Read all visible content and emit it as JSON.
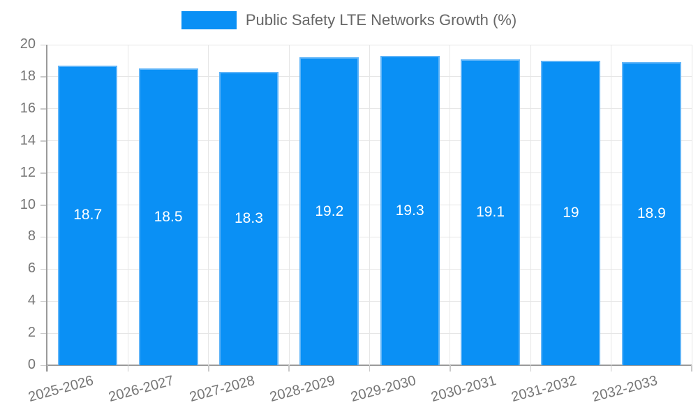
{
  "chart_data": {
    "type": "bar",
    "title": "Public Safety LTE Networks Growth (%)",
    "categories": [
      "2025-2026",
      "2026-2027",
      "2027-2028",
      "2028-2029",
      "2029-2030",
      "2030-2031",
      "2031-2032",
      "2032-2033"
    ],
    "values": [
      18.7,
      18.5,
      18.3,
      19.2,
      19.3,
      19.1,
      19,
      18.9
    ],
    "xlabel": "",
    "ylabel": "",
    "ylim": [
      0,
      20
    ],
    "yticks": [
      0,
      2,
      4,
      6,
      8,
      10,
      12,
      14,
      16,
      18,
      20
    ],
    "grid": true,
    "legend_position": "top",
    "colors": {
      "bar_fill": "#0a90f5",
      "bar_border": "#5fb4f8",
      "value_text": "#ffffff",
      "axis_text": "#757575",
      "title_text": "#666666",
      "gridline": "#e6e6e6",
      "axis_line": "#9a9a9a",
      "tick": "#c9c9c9",
      "background": "#ffffff"
    }
  }
}
